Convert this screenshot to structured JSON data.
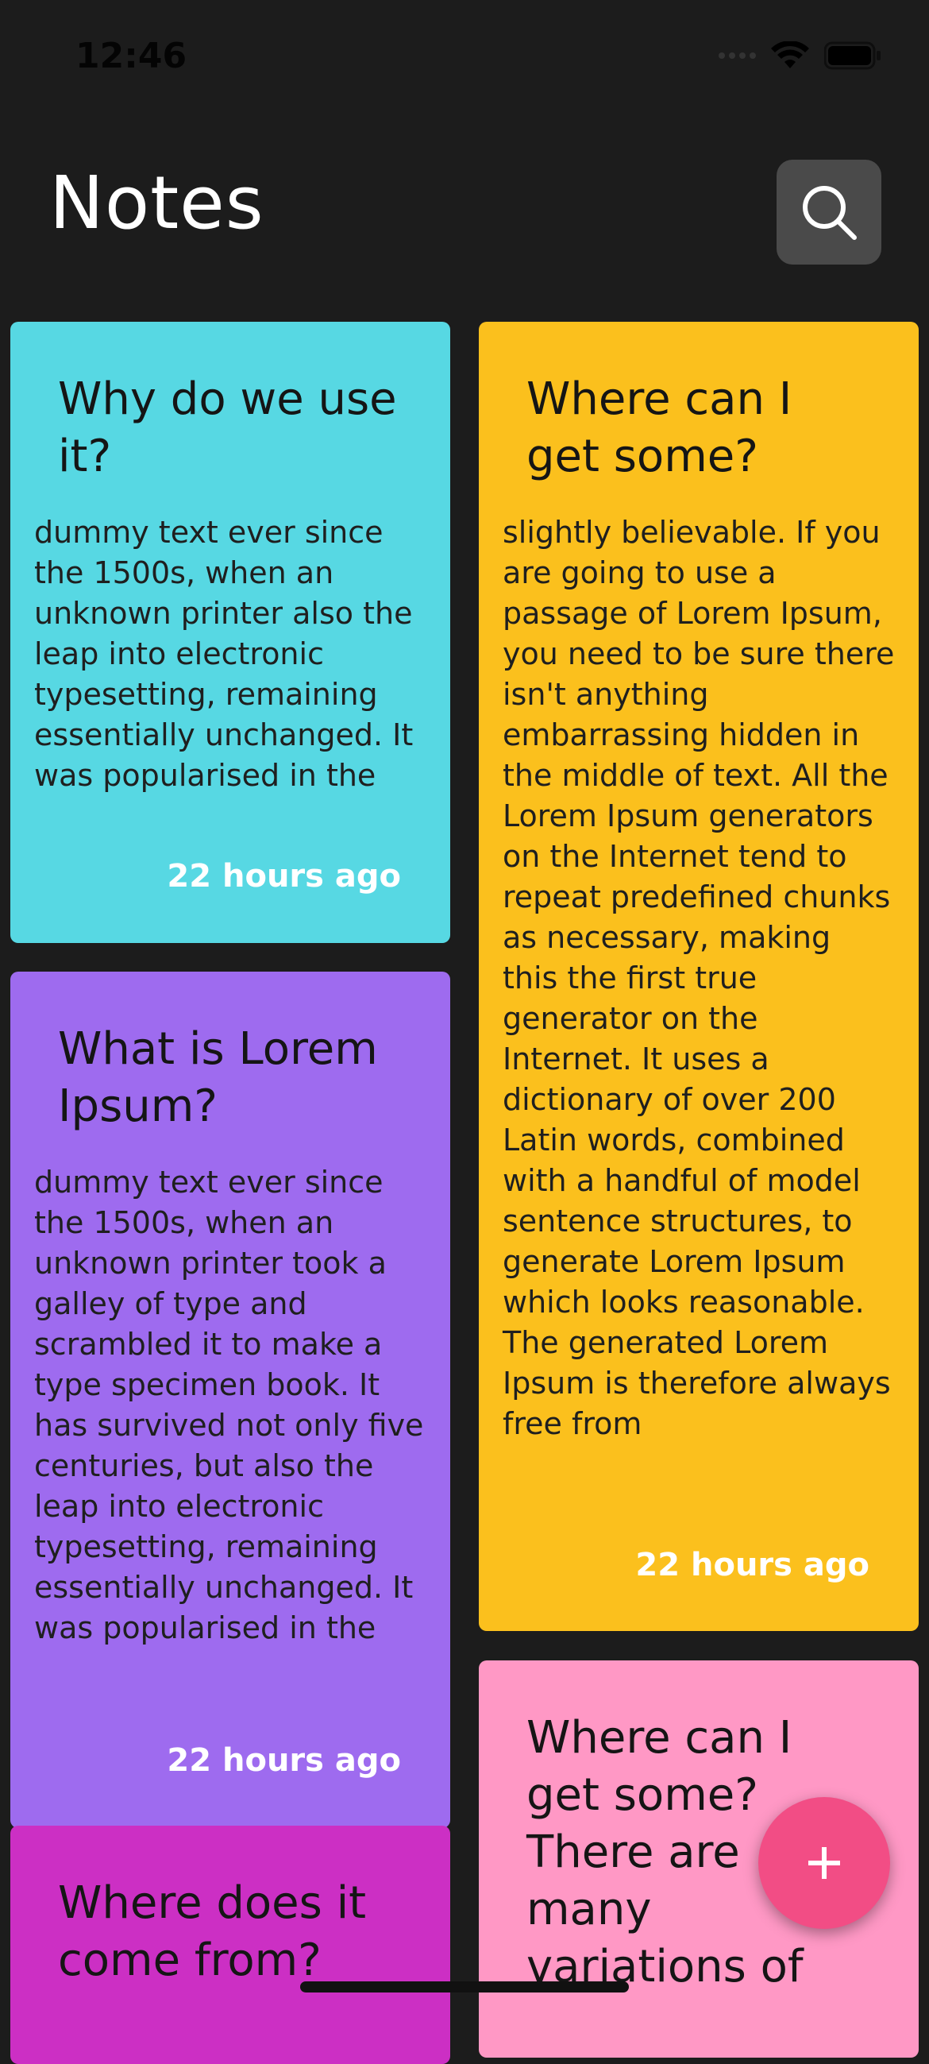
{
  "status_bar": {
    "time": "12:46",
    "signal_icon": "cellular-icon",
    "wifi_icon": "wifi-icon",
    "battery_icon": "battery-icon"
  },
  "header": {
    "title": "Notes",
    "search_icon": "search-icon",
    "search_button_color": "#4a4a4a"
  },
  "notes": [
    {
      "title": "Why do we use it?",
      "body": "dummy text ever since the 1500s, when an unknown printer also the leap into electronic typesetting, remaining essentially unchanged. It was popularised in the",
      "time": "22 hours ago",
      "color": "#57d8e3"
    },
    {
      "title": "What is Lorem Ipsum?",
      "body": "dummy text ever since the 1500s, when an unknown printer took a galley of type and scrambled it to make a type specimen book. It has survived not only five centuries, but also the leap into electronic typesetting, remaining essentially unchanged. It was popularised in the",
      "time": "22 hours ago",
      "color": "#9e6bef"
    },
    {
      "title": "Where does it come from?",
      "body": "",
      "time": "",
      "color": "#cc2fc4"
    },
    {
      "title": "Where can I get some?",
      "body": "slightly believable. If you are going to use a passage of Lorem Ipsum, you need to be sure there isn't anything embarrassing hidden in the middle of text. All the Lorem Ipsum generators on the Internet tend to repeat predefined chunks as necessary, making this the first true generator on the Internet. It uses a dictionary of over 200 Latin words, combined with a handful of model sentence structures, to generate Lorem Ipsum which looks reasonable. The generated Lorem Ipsum is therefore always free from",
      "time": "22 hours ago",
      "color": "#fbc01d"
    },
    {
      "title": "Where can I get some? There are many variations of",
      "body": "",
      "time": "",
      "color": "#ff98c5"
    }
  ],
  "fab": {
    "icon": "plus-icon",
    "color": "#f24d85"
  }
}
